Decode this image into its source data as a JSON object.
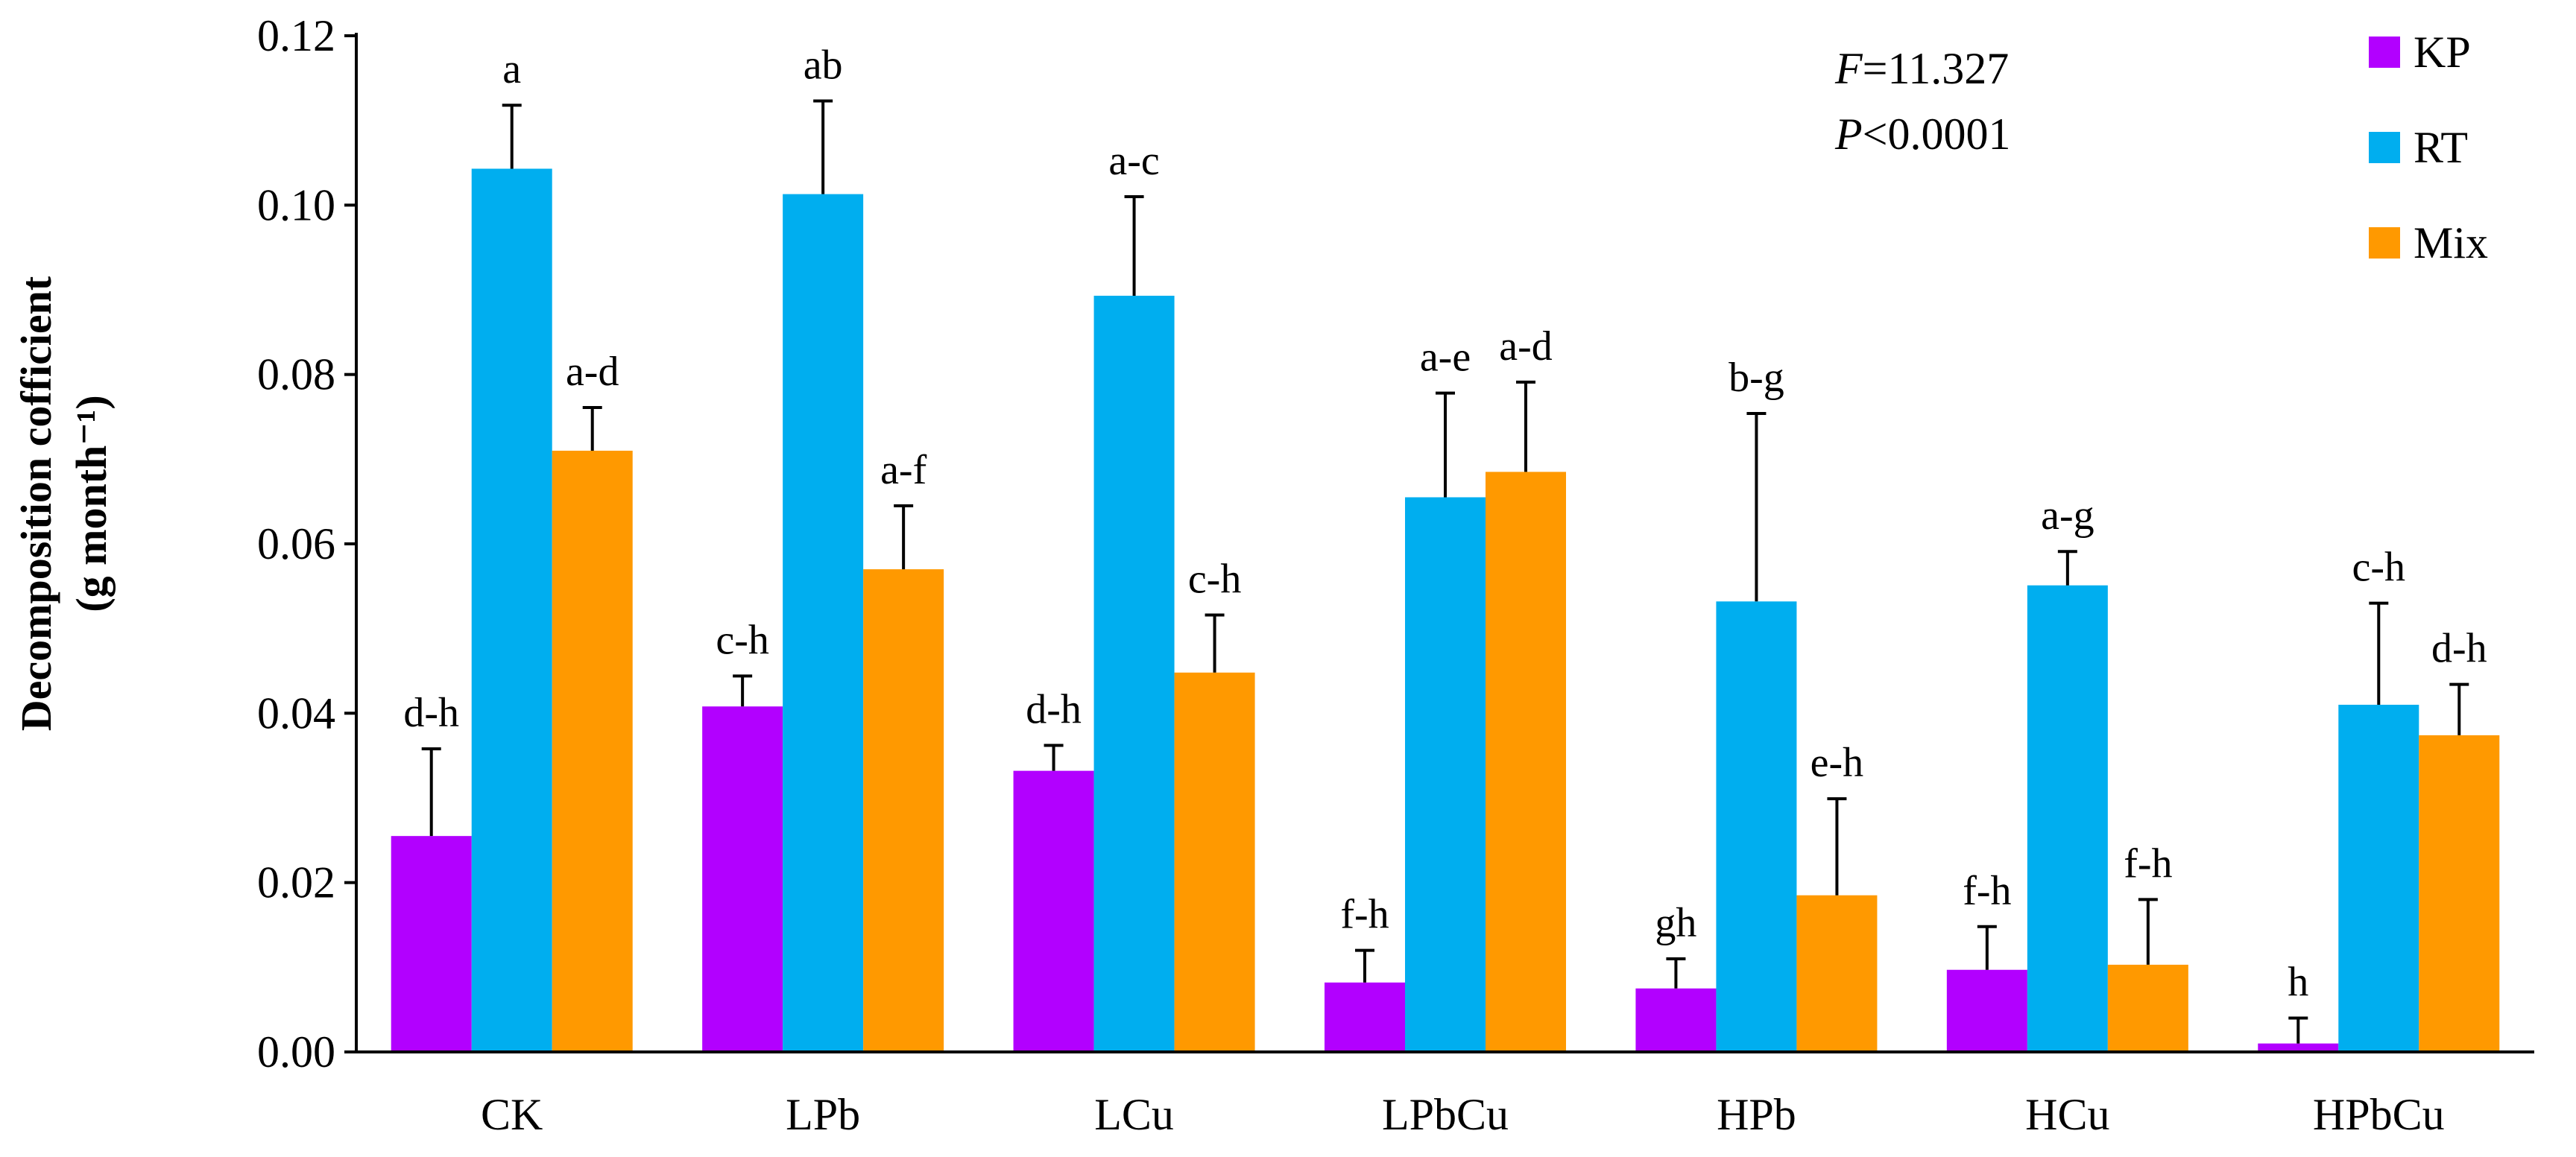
{
  "chart_data": {
    "type": "bar",
    "title": "",
    "xlabel": "",
    "ylabel_line1": "Decomposition cofficient",
    "ylabel_line2": "(g month⁻¹)",
    "ylim": [
      0,
      0.12
    ],
    "yticks": [
      "0.00",
      "0.02",
      "0.04",
      "0.06",
      "0.08",
      "0.10",
      "0.12"
    ],
    "categories": [
      "CK",
      "LPb",
      "LCu",
      "LPbCu",
      "HPb",
      "HCu",
      "HPbCu"
    ],
    "series": [
      {
        "name": "KP",
        "color": "#B200FF",
        "values": [
          0.0255,
          0.0408,
          0.0332,
          0.0082,
          0.0075,
          0.0097,
          0.001
        ],
        "errors": [
          0.0103,
          0.0036,
          0.003,
          0.0038,
          0.0035,
          0.0051,
          0.003
        ],
        "labels": [
          "d-h",
          "c-h",
          "d-h",
          "f-h",
          "gh",
          "f-h",
          "h"
        ]
      },
      {
        "name": "RT",
        "color": "#00AEEF",
        "values": [
          0.1043,
          0.1013,
          0.0893,
          0.0655,
          0.0532,
          0.0551,
          0.041
        ],
        "errors": [
          0.0075,
          0.011,
          0.0117,
          0.0123,
          0.0222,
          0.004,
          0.012
        ],
        "labels": [
          "a",
          "ab",
          "a-c",
          "a-e",
          "b-g",
          "a-g",
          "c-h"
        ]
      },
      {
        "name": "Mix",
        "color": "#FF9900",
        "values": [
          0.071,
          0.057,
          0.0448,
          0.0685,
          0.0185,
          0.0103,
          0.0374
        ],
        "errors": [
          0.0051,
          0.0075,
          0.0068,
          0.0106,
          0.0114,
          0.0077,
          0.006
        ],
        "labels": [
          "a-d",
          "a-f",
          "c-h",
          "a-d",
          "e-h",
          "f-h",
          "d-h"
        ]
      }
    ],
    "stats": {
      "f_symbol": "F",
      "f_rest": "=11.327",
      "p_symbol": "P",
      "p_rest": "<0.0001"
    },
    "legend_position": "top-right"
  }
}
